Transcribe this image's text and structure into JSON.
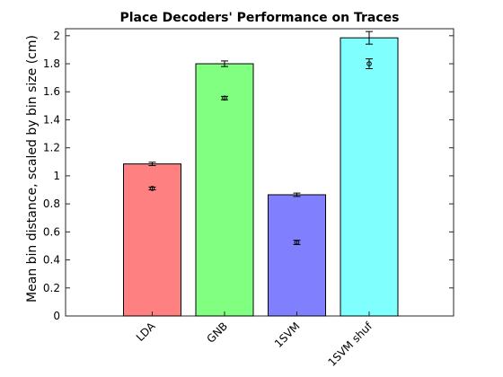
{
  "chart_data": {
    "type": "bar",
    "title": "Place Decoders' Performance on Traces",
    "xlabel": "",
    "ylabel": "Mean bin distance, scaled by bin size (cm)",
    "categories": [
      "LDA",
      "GNB",
      "1SVM",
      "1SVM shuf"
    ],
    "values": [
      1.085,
      1.8,
      0.865,
      1.985
    ],
    "errors": [
      0.012,
      0.02,
      0.012,
      0.045
    ],
    "secondary_points": {
      "values": [
        0.91,
        1.555,
        0.525,
        1.8
      ],
      "errors": [
        0.01,
        0.012,
        0.015,
        0.035
      ]
    },
    "bar_colors": [
      "#ff8080",
      "#80ff80",
      "#8080ff",
      "#80ffff"
    ],
    "ylim": [
      0,
      2.05
    ],
    "yticks": [
      "0",
      "0.2",
      "0.4",
      "0.6",
      "0.8",
      "1",
      "1.2",
      "1.4",
      "1.6",
      "1.8",
      "2"
    ],
    "grid": false,
    "legend": "none"
  }
}
